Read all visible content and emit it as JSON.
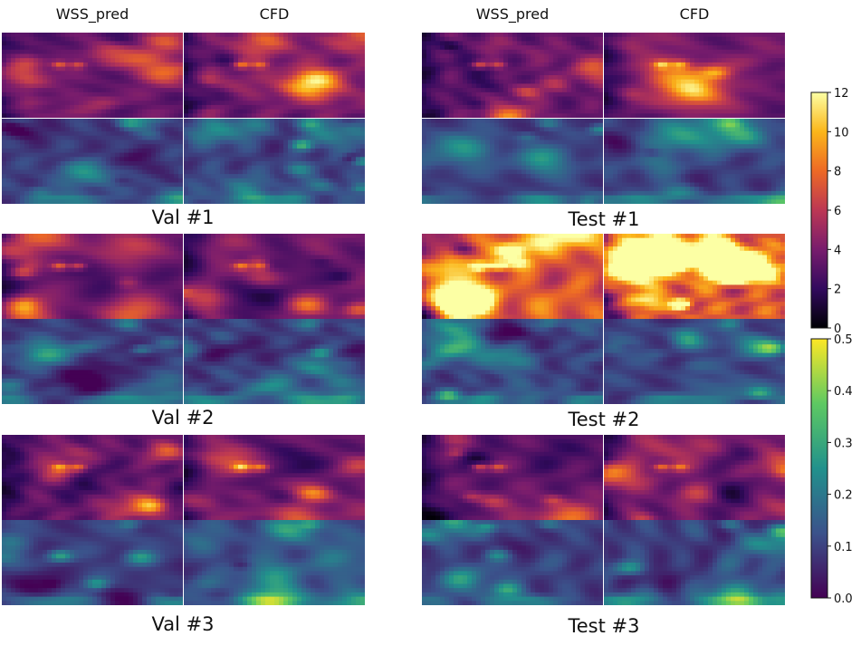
{
  "headers": {
    "left_pred": "WSS_pred",
    "left_cfd": "CFD",
    "right_pred": "WSS_pred",
    "right_cfd": "CFD"
  },
  "cases": {
    "val": [
      "Val #1",
      "Val #2",
      "Val #3"
    ],
    "test": [
      "Test #1",
      "Test #2",
      "Test #3"
    ]
  },
  "colors": {
    "inferno": [
      "#000004",
      "#320a5e",
      "#781c6d",
      "#bc3754",
      "#ed6925",
      "#fbb61a",
      "#fcffa4"
    ],
    "viridis": [
      "#440154",
      "#3b528b",
      "#21918c",
      "#5ec962",
      "#fde725"
    ]
  },
  "chart_data": {
    "type": "heatmap",
    "colorbars": [
      {
        "name": "",
        "colormap": "inferno",
        "range": [
          0,
          12
        ],
        "ticks": [
          "0",
          "2",
          "4",
          "6",
          "8",
          "10",
          "12"
        ]
      },
      {
        "name": "",
        "colormap": "viridis",
        "range": [
          0,
          0.5
        ],
        "ticks": [
          "0.0",
          "0.1",
          "0.2",
          "0.3",
          "0.4",
          "0.5"
        ]
      }
    ]
  }
}
